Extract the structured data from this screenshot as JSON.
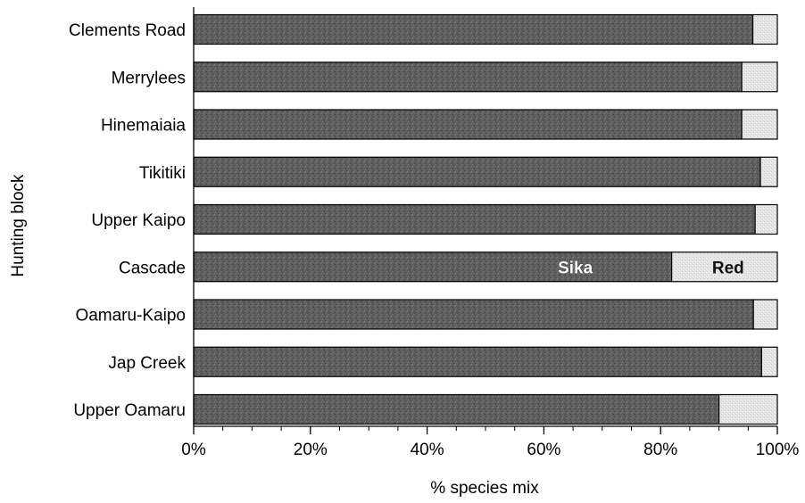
{
  "chart_data": {
    "type": "bar",
    "orientation": "horizontal",
    "stacked": true,
    "categories": [
      "Clements Road",
      "Merrylees",
      "Hinemaiaia",
      "Tikitiki",
      "Upper Kaipo",
      "Cascade",
      "Oamaru-Kaipo",
      "Jap Creek",
      "Upper Oamaru"
    ],
    "series": [
      {
        "name": "Sika",
        "color": "#5f5f5f",
        "values": [
          95.8,
          93.9,
          93.9,
          97.1,
          96.2,
          81.9,
          95.9,
          97.3,
          90.0
        ]
      },
      {
        "name": "Red",
        "color": "#e0e0e0",
        "values": [
          4.2,
          6.1,
          6.1,
          2.9,
          3.8,
          18.1,
          4.1,
          2.7,
          10.0
        ]
      }
    ],
    "inline_labels": {
      "category": "Cascade",
      "sika": "Sika",
      "red": "Red"
    },
    "xlabel": "% species mix",
    "ylabel": "Hunting block",
    "xlim": [
      0,
      100
    ],
    "x_ticks": [
      0,
      20,
      40,
      60,
      80,
      100
    ],
    "x_tick_labels": [
      "0%",
      "20%",
      "40%",
      "60%",
      "80%",
      "100%"
    ],
    "grid": false,
    "legend": "none"
  }
}
